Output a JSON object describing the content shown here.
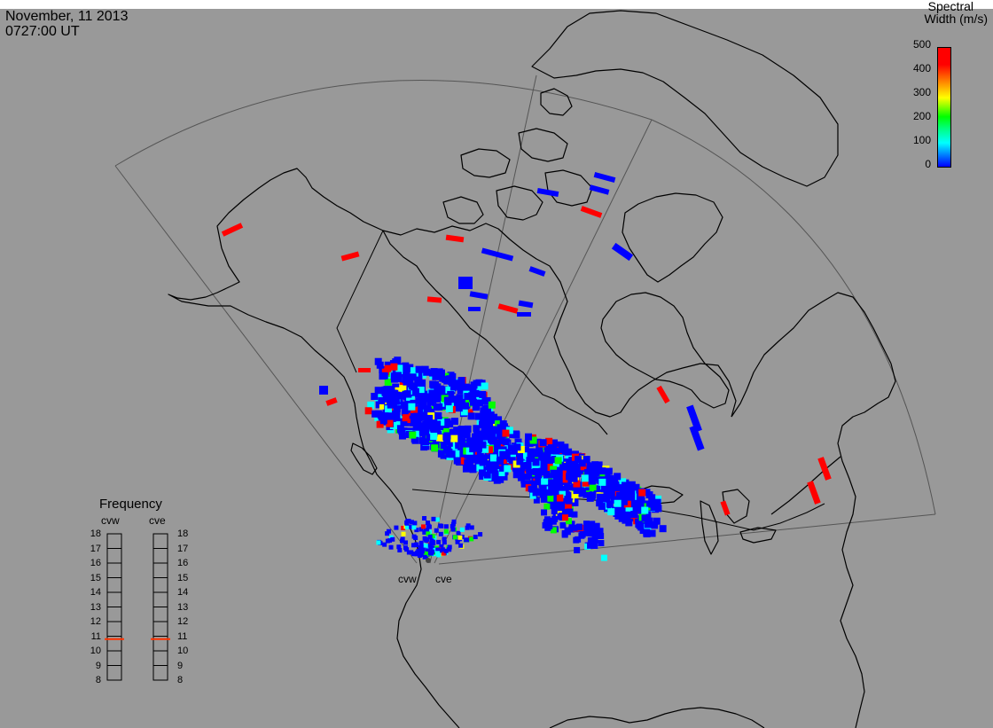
{
  "header": {
    "date": "November, 11 2013",
    "time": "0727:00 UT"
  },
  "colorbar": {
    "title_line1": "Spectral",
    "title_line2": "Width (m/s)",
    "ticks": [
      "500",
      "400",
      "300",
      "200",
      "100",
      "0"
    ],
    "colors": [
      "#0000ff",
      "#00ffff",
      "#00ff00",
      "#ffff00",
      "#ff0000"
    ]
  },
  "frequency_panel": {
    "title": "Frequency",
    "radars": [
      "cvw",
      "cve"
    ],
    "ticks": [
      "18",
      "17",
      "16",
      "15",
      "14",
      "13",
      "12",
      "11",
      "10",
      "9",
      "8"
    ],
    "current_mhz": 10.8,
    "marker_color": "#ff3300"
  },
  "map": {
    "radar_labels": [
      "cvw",
      "cve"
    ],
    "background_color": "#999999"
  }
}
